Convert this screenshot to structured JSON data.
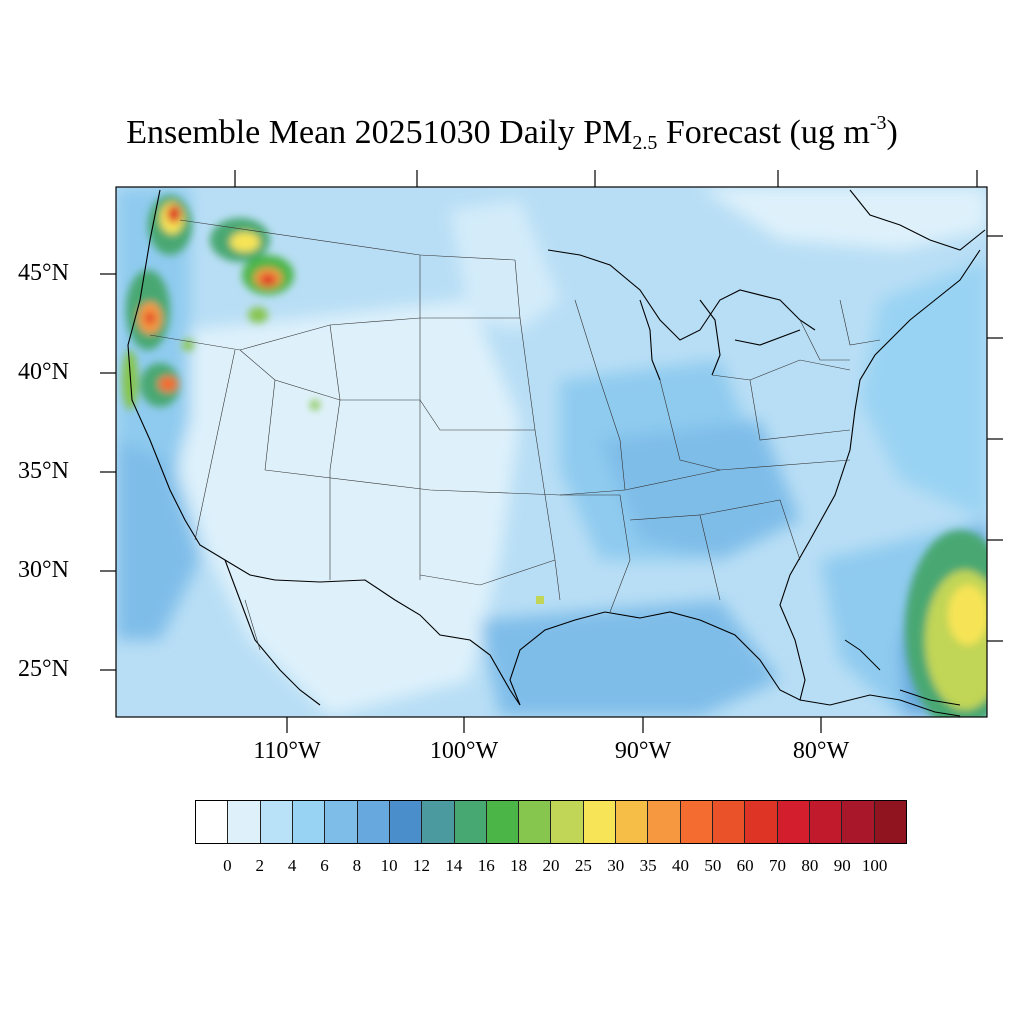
{
  "title": {
    "prefix": "Ensemble Mean 20251030 Daily PM",
    "subscript": "2.5",
    "middle": " Forecast (ug m",
    "superscript": "-3",
    "suffix": ")"
  },
  "map": {
    "lat_labels": [
      "45°N",
      "40°N",
      "35°N",
      "30°N",
      "25°N"
    ],
    "lon_labels": [
      "110°W",
      "100°W",
      "90°W",
      "80°W"
    ],
    "background_color": "#b8def5",
    "low_color": "#def1fb",
    "mid_color": "#8fcbef",
    "high_color": "#6aaee0"
  },
  "colorbar": {
    "labels": [
      "0",
      "2",
      "4",
      "6",
      "8",
      "10",
      "12",
      "14",
      "16",
      "18",
      "20",
      "25",
      "30",
      "35",
      "40",
      "50",
      "60",
      "70",
      "80",
      "90",
      "100"
    ],
    "colors": [
      "#ffffff",
      "#def1fb",
      "#b9e1f7",
      "#99d3f3",
      "#7fbde9",
      "#67a9df",
      "#4a8ecb",
      "#4a9aa0",
      "#48a872",
      "#4bb548",
      "#86c54e",
      "#c1d557",
      "#f7e457",
      "#f7be47",
      "#f69840",
      "#f46c30",
      "#ea5229",
      "#dd3426",
      "#d21e2d",
      "#c11a2c",
      "#a8172a",
      "#8f1420"
    ]
  }
}
